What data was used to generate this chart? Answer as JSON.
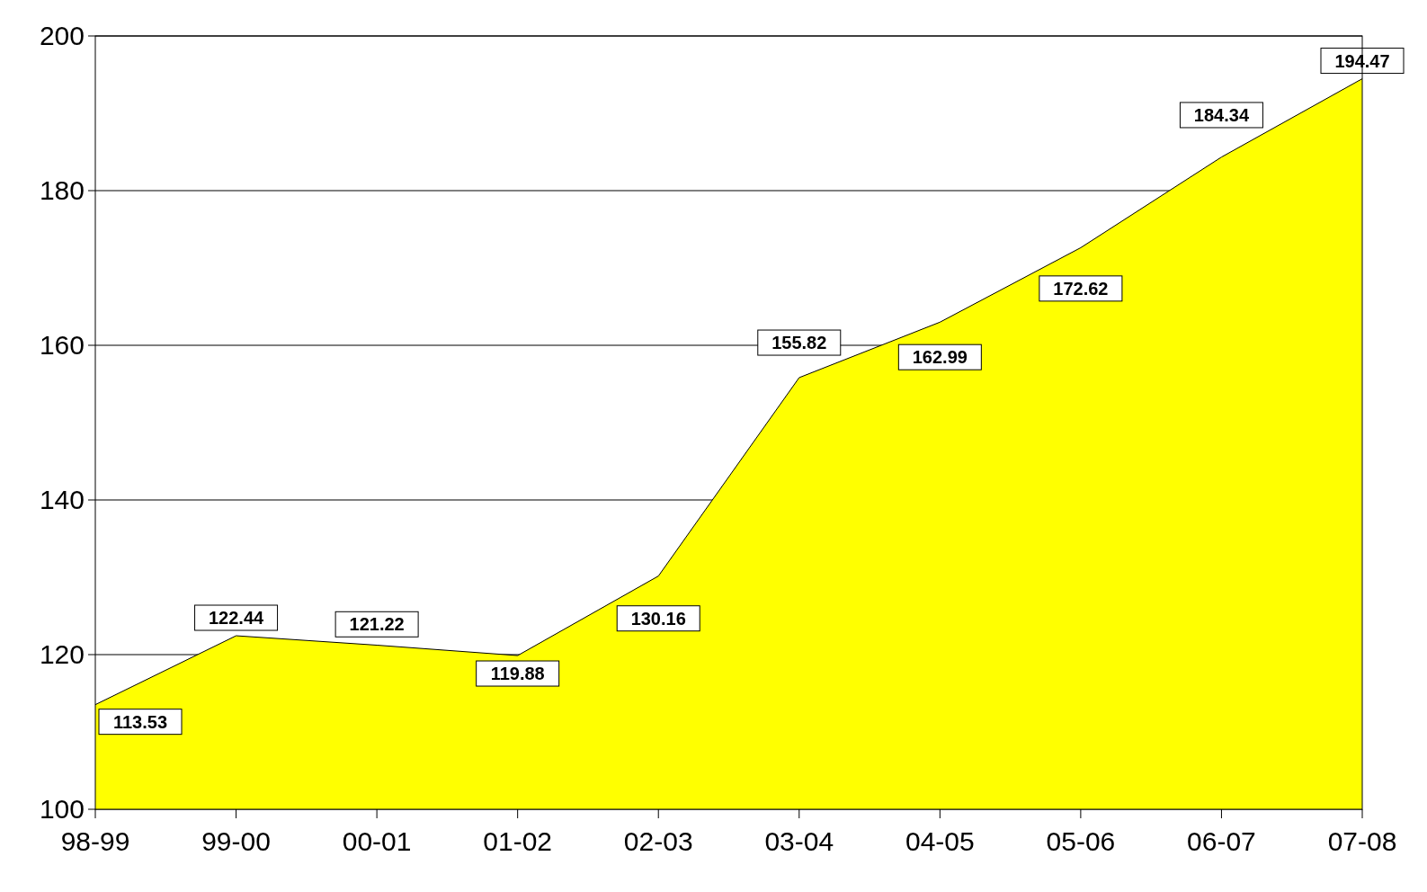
{
  "chart_data": {
    "type": "area",
    "categories": [
      "98-99",
      "99-00",
      "00-01",
      "01-02",
      "02-03",
      "03-04",
      "04-05",
      "05-06",
      "06-07",
      "07-08"
    ],
    "series": [
      {
        "color": "#ffff00",
        "values": [
          113.53,
          122.44,
          121.22,
          119.88,
          130.16,
          155.82,
          162.99,
          172.62,
          184.34,
          194.47
        ],
        "value_labels": [
          "113.53",
          "122.44",
          "121.22",
          "119.88",
          "130.16",
          "155.82",
          "162.99",
          "172.62",
          "184.34",
          "194.47"
        ]
      }
    ],
    "ylim": [
      100,
      200
    ],
    "yticks": [
      100,
      120,
      140,
      160,
      180,
      200
    ],
    "grid": "y"
  }
}
